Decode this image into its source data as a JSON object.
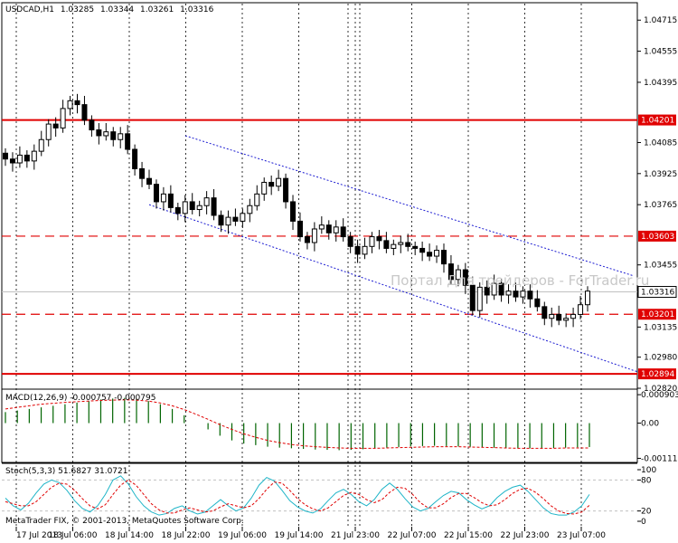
{
  "chart_data": [
    {
      "type": "candlestick",
      "title": "USDCAD,H1",
      "ohlc_header": [
        "1.03285",
        "1.03344",
        "1.03261",
        "1.03316"
      ],
      "ylim": [
        1.0282,
        1.048
      ],
      "y_ticks": [
        1.04715,
        1.04555,
        1.04395,
        1.04085,
        1.03925,
        1.03765,
        1.03455,
        1.03135,
        1.0298,
        1.0282
      ],
      "y_tick_labels": [
        "1.04715",
        "1.04555",
        "1.04395",
        "1.04085",
        "1.03925",
        "1.03765",
        "1.03455",
        "1.03135",
        "1.02980",
        "1.02820"
      ],
      "x_tick_labels": [
        "17 Jul 2013",
        "18 Jul 06:00",
        "18 Jul 14:00",
        "18 Jul 22:00",
        "19 Jul 06:00",
        "19 Jul 14:00",
        "21 Jul 23:00",
        "22 Jul 07:00",
        "22 Jul 15:00",
        "22 Jul 23:00",
        "23 Jul 07:00"
      ],
      "close_series": [
        1.04,
        1.0398,
        1.0402,
        1.0399,
        1.0404,
        1.041,
        1.0418,
        1.0416,
        1.0426,
        1.043,
        1.0428,
        1.042,
        1.0415,
        1.0412,
        1.0414,
        1.041,
        1.0413,
        1.0405,
        1.0395,
        1.039,
        1.0387,
        1.0378,
        1.0382,
        1.0375,
        1.0372,
        1.0378,
        1.0374,
        1.0376,
        1.038,
        1.0371,
        1.0366,
        1.037,
        1.0368,
        1.0372,
        1.0376,
        1.0382,
        1.0388,
        1.0386,
        1.039,
        1.0378,
        1.0368,
        1.036,
        1.0357,
        1.0364,
        1.0366,
        1.0362,
        1.0365,
        1.036,
        1.0355,
        1.0351,
        1.0355,
        1.036,
        1.0358,
        1.0354,
        1.0356,
        1.0357,
        1.0355,
        1.0354,
        1.0352,
        1.035,
        1.0353,
        1.0346,
        1.0338,
        1.0343,
        1.0335,
        1.0322,
        1.0334,
        1.033,
        1.0336,
        1.033,
        1.0332,
        1.0329,
        1.0332,
        1.0328,
        1.0324,
        1.0318,
        1.032,
        1.0317,
        1.0318,
        1.032,
        1.0325,
        1.0332
      ],
      "horizontal_levels": [
        {
          "value": 1.04201,
          "label": "1.04201",
          "style": "solid",
          "color": "#e00000"
        },
        {
          "value": 1.03603,
          "label": "1.03603",
          "style": "dashed",
          "color": "#e00000"
        },
        {
          "value": 1.03201,
          "label": "1.03201",
          "style": "dashed",
          "color": "#e00000"
        },
        {
          "value": 1.02894,
          "label": "1.02894",
          "style": "solid",
          "color": "#e00000"
        }
      ],
      "current_price": {
        "value": 1.03316,
        "label": "1.03316"
      },
      "channel_color": "#1e1ed2",
      "watermark": "Портал Для трейдеров - ForTrader.ru"
    },
    {
      "type": "histogram",
      "title": "MACD(12,26,9) -0.000757 -0.000795",
      "ylim": [
        -0.00125,
        0.00105
      ],
      "y_tick_labels": [
        "0.000903",
        "0.00",
        "-0.001119"
      ],
      "y_ticks": [
        0.000903,
        0.0,
        -0.001119
      ],
      "hist_color": "#006400",
      "signal_color": "#e00000",
      "histogram": [
        0.00035,
        0.0004,
        0.00045,
        0.0005,
        0.00055,
        0.0006,
        0.00065,
        0.0007,
        0.00075,
        0.00078,
        0.0008,
        0.00078,
        0.0007,
        0.0006,
        0.00045,
        0.00025,
        0.0,
        -0.0002,
        -0.0004,
        -0.00055,
        -0.00065,
        -0.0007,
        -0.00075,
        -0.00078,
        -0.0008,
        -0.00082,
        -0.00084,
        -0.00085,
        -0.00086,
        -0.00085,
        -0.00083,
        -0.0008,
        -0.00078,
        -0.00076,
        -0.00074,
        -0.00073,
        -0.00072,
        -0.00073,
        -0.00074,
        -0.00075,
        -0.00077,
        -0.00078,
        -0.00079,
        -0.0008,
        -0.0008,
        -0.0008,
        -0.00079,
        -0.00078,
        -0.00077,
        -0.00076
      ],
      "signal": [
        0.00045,
        0.0005,
        0.00055,
        0.0006,
        0.00063,
        0.00066,
        0.00068,
        0.0007,
        0.00072,
        0.00073,
        0.00074,
        0.00073,
        0.0007,
        0.00064,
        0.00055,
        0.00043,
        0.00028,
        0.00012,
        -5e-05,
        -0.0002,
        -0.00034,
        -0.00045,
        -0.00055,
        -0.00062,
        -0.00068,
        -0.00072,
        -0.00075,
        -0.00077,
        -0.00079,
        -0.0008,
        -0.0008,
        -0.0008,
        -0.00079,
        -0.00078,
        -0.00077,
        -0.00076,
        -0.00075,
        -0.00075,
        -0.00075,
        -0.00076,
        -0.00077,
        -0.00078,
        -0.00079,
        -0.0008,
        -0.0008,
        -0.0008,
        -0.0008,
        -0.00079,
        -0.00079,
        -0.00079
      ]
    },
    {
      "type": "line",
      "title": "Stoch(5,3,3) 51.6827 31.0721",
      "ylim": [
        0,
        100
      ],
      "y_tick_labels": [
        "100",
        "80",
        "20",
        "0"
      ],
      "y_ticks": [
        100,
        80,
        20,
        0
      ],
      "main_color": "#1fb5c8",
      "signal_color": "#e00000",
      "main": [
        45,
        30,
        22,
        35,
        55,
        72,
        80,
        75,
        60,
        40,
        25,
        18,
        30,
        52,
        80,
        88,
        72,
        48,
        30,
        18,
        12,
        15,
        25,
        30,
        20,
        14,
        18,
        30,
        42,
        30,
        20,
        26,
        45,
        70,
        85,
        78,
        60,
        40,
        28,
        20,
        16,
        24,
        40,
        55,
        62,
        52,
        38,
        30,
        42,
        62,
        74,
        62,
        44,
        28,
        20,
        25,
        38,
        50,
        58,
        55,
        42,
        32,
        24,
        30,
        46,
        58,
        66,
        70,
        58,
        42,
        26,
        15,
        12,
        12,
        18,
        30,
        52
      ],
      "signal": [
        38,
        34,
        30,
        30,
        38,
        52,
        66,
        74,
        72,
        60,
        44,
        30,
        24,
        32,
        52,
        70,
        80,
        70,
        52,
        34,
        22,
        16,
        16,
        22,
        26,
        22,
        18,
        20,
        28,
        34,
        30,
        26,
        30,
        44,
        62,
        76,
        74,
        60,
        44,
        32,
        24,
        20,
        26,
        38,
        50,
        56,
        52,
        42,
        36,
        42,
        56,
        66,
        64,
        52,
        36,
        26,
        26,
        34,
        46,
        54,
        54,
        46,
        36,
        30,
        32,
        42,
        54,
        62,
        64,
        56,
        44,
        30,
        20,
        15,
        14,
        18,
        31
      ]
    }
  ],
  "footer": {
    "copyright": "MetaTrader FIX, © 2001-2013, MetaQuotes Software Corp."
  }
}
